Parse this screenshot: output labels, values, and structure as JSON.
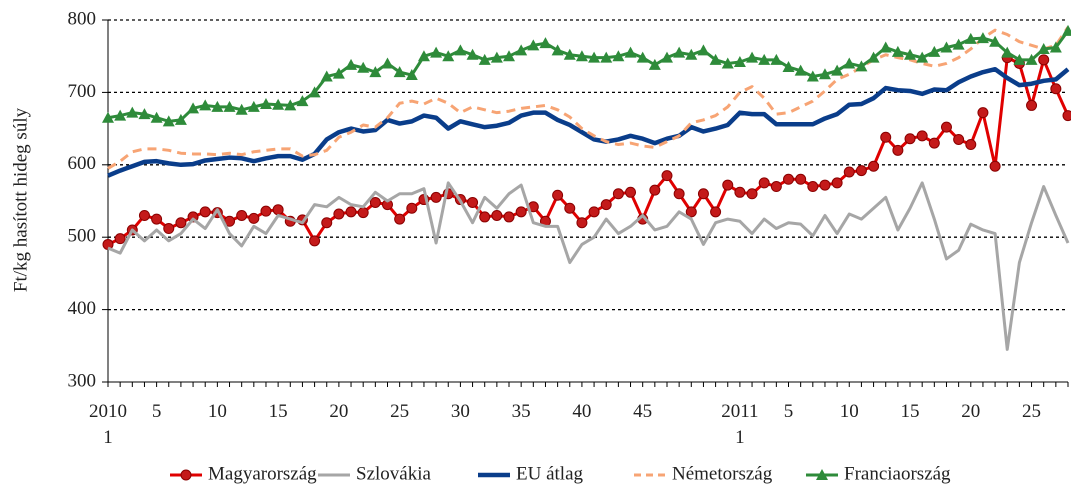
{
  "chart_data": {
    "type": "line",
    "ylabel": "Ft/kg hasított hideg súly",
    "ylim": [
      300,
      800
    ],
    "yticks": [
      300,
      400,
      500,
      600,
      700,
      800
    ],
    "grid": true,
    "grid_style": "dotted",
    "legend": "bottom",
    "categories": [
      "2010 1",
      null,
      null,
      null,
      "5",
      null,
      null,
      null,
      null,
      "10",
      null,
      null,
      null,
      null,
      "15",
      null,
      null,
      null,
      null,
      "20",
      null,
      null,
      null,
      null,
      "25",
      null,
      null,
      null,
      null,
      "30",
      null,
      null,
      null,
      null,
      "35",
      null,
      null,
      null,
      null,
      "40",
      null,
      null,
      null,
      null,
      "45",
      null,
      null,
      null,
      null,
      null,
      null,
      null,
      "2011 1",
      null,
      null,
      null,
      "5",
      null,
      null,
      null,
      null,
      "10",
      null,
      null,
      null,
      null,
      "15",
      null,
      null,
      null,
      null,
      "20",
      null,
      null,
      null,
      null,
      "25",
      null,
      null,
      null
    ],
    "series": [
      {
        "name": "Magyarország",
        "color": "#e00000",
        "marker": "circle",
        "marker_color": "#c41a1a",
        "width": 3,
        "values": [
          490,
          498,
          510,
          530,
          525,
          512,
          520,
          528,
          535,
          534,
          522,
          530,
          526,
          536,
          538,
          522,
          524,
          495,
          520,
          532,
          535,
          534,
          548,
          545,
          525,
          540,
          552,
          555,
          560,
          552,
          548,
          528,
          530,
          528,
          535,
          542,
          522,
          558,
          540,
          520,
          535,
          545,
          560,
          562,
          525,
          565,
          585,
          560,
          535,
          560,
          535,
          572,
          562,
          560,
          575,
          570,
          580,
          580,
          570,
          572,
          575,
          590,
          592,
          598,
          638,
          620,
          636,
          640,
          630,
          652,
          635,
          628,
          672,
          598,
          748,
          740,
          682,
          745,
          705,
          668
        ]
      },
      {
        "name": "Szlovákia",
        "color": "#a6a6a6",
        "width": 3,
        "values": [
          485,
          478,
          510,
          495,
          510,
          495,
          505,
          525,
          512,
          538,
          505,
          488,
          515,
          505,
          530,
          525,
          520,
          545,
          542,
          555,
          545,
          542,
          562,
          550,
          560,
          560,
          567,
          492,
          575,
          550,
          520,
          555,
          540,
          560,
          572,
          520,
          515,
          515,
          465,
          490,
          500,
          525,
          505,
          515,
          530,
          510,
          515,
          535,
          525,
          490,
          520,
          525,
          522,
          505,
          525,
          512,
          520,
          518,
          502,
          530,
          505,
          532,
          525,
          540,
          555,
          510,
          540,
          575,
          525,
          470,
          482,
          518,
          510,
          505,
          345,
          465,
          520,
          570,
          530,
          492
        ]
      },
      {
        "name": "EU átlag",
        "color": "#0a3d8a",
        "width": 4.5,
        "values": [
          585,
          592,
          598,
          604,
          605,
          602,
          600,
          601,
          606,
          608,
          610,
          609,
          605,
          609,
          612,
          612,
          607,
          615,
          635,
          645,
          650,
          646,
          648,
          662,
          657,
          660,
          668,
          665,
          650,
          660,
          656,
          652,
          654,
          658,
          668,
          672,
          672,
          662,
          655,
          645,
          635,
          632,
          635,
          640,
          636,
          630,
          636,
          640,
          652,
          646,
          650,
          655,
          672,
          670,
          670,
          656,
          656,
          656,
          656,
          664,
          670,
          683,
          684,
          692,
          706,
          703,
          702,
          698,
          704,
          703,
          714,
          722,
          728,
          732,
          720,
          710,
          712,
          716,
          718,
          732
        ]
      },
      {
        "name": "Németország",
        "color": "#f7a474",
        "dash": true,
        "width": 3,
        "values": [
          595,
          605,
          618,
          622,
          622,
          620,
          616,
          615,
          615,
          614,
          616,
          614,
          618,
          620,
          622,
          622,
          612,
          614,
          620,
          638,
          645,
          655,
          652,
          665,
          685,
          688,
          684,
          692,
          685,
          672,
          680,
          676,
          672,
          674,
          678,
          680,
          682,
          676,
          666,
          650,
          640,
          632,
          628,
          630,
          626,
          624,
          632,
          640,
          658,
          662,
          668,
          680,
          700,
          708,
          692,
          670,
          672,
          680,
          688,
          702,
          718,
          725,
          735,
          745,
          752,
          748,
          745,
          740,
          736,
          740,
          748,
          760,
          775,
          786,
          780,
          770,
          765,
          760,
          765,
          790
        ]
      },
      {
        "name": "Franciaország",
        "color": "#2e8b3a",
        "marker": "triangle",
        "marker_color": "#2e8b3a",
        "width": 3,
        "values": [
          665,
          668,
          672,
          670,
          665,
          660,
          662,
          678,
          682,
          680,
          680,
          676,
          680,
          684,
          683,
          682,
          688,
          700,
          722,
          726,
          738,
          734,
          728,
          740,
          728,
          724,
          750,
          755,
          750,
          758,
          752,
          745,
          748,
          750,
          758,
          765,
          768,
          758,
          752,
          750,
          748,
          748,
          750,
          755,
          748,
          738,
          748,
          755,
          752,
          758,
          745,
          740,
          742,
          748,
          745,
          745,
          735,
          730,
          722,
          725,
          730,
          740,
          736,
          748,
          762,
          756,
          752,
          748,
          756,
          762,
          766,
          774,
          775,
          770,
          755,
          745,
          745,
          760,
          762,
          785
        ]
      }
    ]
  }
}
